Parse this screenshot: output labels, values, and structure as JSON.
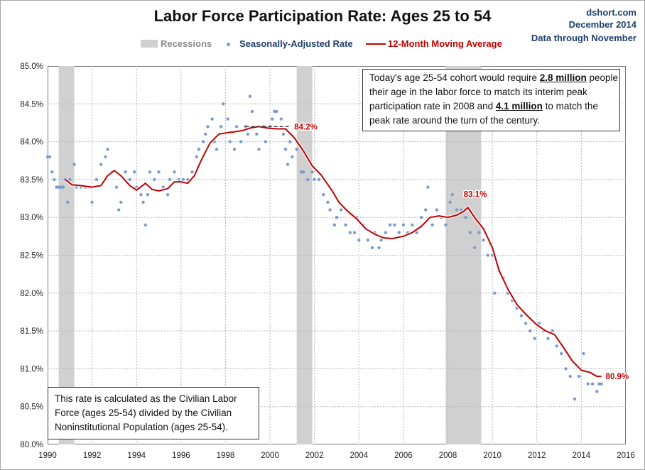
{
  "chart_data": {
    "type": "line",
    "title": "Labor Force Participation Rate: Ages 25 to 54",
    "source": {
      "site": "dshort.com",
      "date": "December 2014",
      "note": "Data through November"
    },
    "legend": {
      "recessions": "Recessions",
      "series_rate": "Seasonally-Adjusted Rate",
      "series_ma": "12-Month Moving Average"
    },
    "colors": {
      "dots": "#7a9ccc",
      "line": "#c00000",
      "recession": "#d0d0d0",
      "label": "#c00000",
      "text_blue": "#1f3f6e"
    },
    "xlim": [
      1990,
      2016
    ],
    "ylim": [
      80.0,
      85.0
    ],
    "x_ticks": [
      "1990",
      "1992",
      "1994",
      "1996",
      "1998",
      "2000",
      "2002",
      "2004",
      "2006",
      "2008",
      "2010",
      "2012",
      "2014",
      "2016"
    ],
    "y_ticks": [
      "80.0%",
      "80.5%",
      "81.0%",
      "81.5%",
      "82.0%",
      "82.5%",
      "83.0%",
      "83.5%",
      "84.0%",
      "84.5%",
      "85.0%"
    ],
    "recessions": [
      [
        1990.5,
        1991.2
      ],
      [
        2001.2,
        2001.9
      ],
      [
        2007.9,
        2009.5
      ]
    ],
    "moving_average": [
      [
        1990.8,
        83.5
      ],
      [
        1991.1,
        83.43
      ],
      [
        1991.5,
        83.42
      ],
      [
        1992.0,
        83.4
      ],
      [
        1992.4,
        83.42
      ],
      [
        1992.7,
        83.55
      ],
      [
        1993.0,
        83.62
      ],
      [
        1993.3,
        83.55
      ],
      [
        1993.7,
        83.42
      ],
      [
        1994.0,
        83.36
      ],
      [
        1994.4,
        83.45
      ],
      [
        1994.7,
        83.37
      ],
      [
        1995.0,
        83.35
      ],
      [
        1995.4,
        83.38
      ],
      [
        1995.7,
        83.47
      ],
      [
        1996.0,
        83.47
      ],
      [
        1996.3,
        83.45
      ],
      [
        1996.6,
        83.55
      ],
      [
        1996.9,
        83.75
      ],
      [
        1997.3,
        83.98
      ],
      [
        1997.7,
        84.1
      ],
      [
        1998.1,
        84.12
      ],
      [
        1998.4,
        84.13
      ],
      [
        1998.8,
        84.15
      ],
      [
        1999.1,
        84.18
      ],
      [
        1999.5,
        84.2
      ],
      [
        1999.9,
        84.18
      ],
      [
        2000.3,
        84.17
      ],
      [
        2000.7,
        84.17
      ],
      [
        2001.1,
        84.05
      ],
      [
        2001.5,
        83.88
      ],
      [
        2001.9,
        83.68
      ],
      [
        2002.3,
        83.56
      ],
      [
        2002.8,
        83.35
      ],
      [
        2003.1,
        83.2
      ],
      [
        2003.5,
        83.08
      ],
      [
        2003.9,
        82.98
      ],
      [
        2004.3,
        82.85
      ],
      [
        2004.7,
        82.78
      ],
      [
        2005.1,
        82.73
      ],
      [
        2005.5,
        82.72
      ],
      [
        2006.0,
        82.75
      ],
      [
        2006.4,
        82.8
      ],
      [
        2006.8,
        82.88
      ],
      [
        2007.2,
        83.0
      ],
      [
        2007.6,
        83.02
      ],
      [
        2008.0,
        83.0
      ],
      [
        2008.4,
        83.03
      ],
      [
        2008.7,
        83.08
      ],
      [
        2008.9,
        83.13
      ],
      [
        2009.2,
        83.0
      ],
      [
        2009.6,
        82.85
      ],
      [
        2010.0,
        82.6
      ],
      [
        2010.3,
        82.3
      ],
      [
        2010.7,
        82.05
      ],
      [
        2011.1,
        81.85
      ],
      [
        2011.5,
        81.72
      ],
      [
        2012.0,
        81.58
      ],
      [
        2012.4,
        81.5
      ],
      [
        2012.8,
        81.45
      ],
      [
        2013.2,
        81.28
      ],
      [
        2013.6,
        81.1
      ],
      [
        2014.0,
        80.98
      ],
      [
        2014.4,
        80.95
      ],
      [
        2014.7,
        80.9
      ],
      [
        2014.9,
        80.9
      ]
    ],
    "seasonally_adjusted": [
      [
        1990.0,
        83.8
      ],
      [
        1990.1,
        83.8
      ],
      [
        1990.2,
        83.6
      ],
      [
        1990.3,
        83.5
      ],
      [
        1990.4,
        83.4
      ],
      [
        1990.5,
        83.4
      ],
      [
        1990.6,
        83.4
      ],
      [
        1990.7,
        83.4
      ],
      [
        1990.8,
        83.5
      ],
      [
        1990.9,
        83.2
      ],
      [
        1991.0,
        83.5
      ],
      [
        1991.2,
        83.7
      ],
      [
        1991.3,
        83.4
      ],
      [
        1991.5,
        83.4
      ],
      [
        1991.7,
        83.4
      ],
      [
        1991.9,
        83.4
      ],
      [
        1992.0,
        83.2
      ],
      [
        1992.2,
        83.5
      ],
      [
        1992.4,
        83.7
      ],
      [
        1992.6,
        83.8
      ],
      [
        1992.7,
        83.9
      ],
      [
        1992.9,
        83.6
      ],
      [
        1993.1,
        83.4
      ],
      [
        1993.2,
        83.1
      ],
      [
        1993.3,
        83.2
      ],
      [
        1993.5,
        83.6
      ],
      [
        1993.7,
        83.5
      ],
      [
        1993.9,
        83.6
      ],
      [
        1994.0,
        83.4
      ],
      [
        1994.2,
        83.3
      ],
      [
        1994.3,
        83.2
      ],
      [
        1994.4,
        82.9
      ],
      [
        1994.5,
        83.3
      ],
      [
        1994.6,
        83.6
      ],
      [
        1994.8,
        83.5
      ],
      [
        1995.0,
        83.6
      ],
      [
        1995.2,
        83.4
      ],
      [
        1995.4,
        83.3
      ],
      [
        1995.5,
        83.5
      ],
      [
        1995.7,
        83.6
      ],
      [
        1995.9,
        83.5
      ],
      [
        1996.1,
        83.5
      ],
      [
        1996.3,
        83.5
      ],
      [
        1996.5,
        83.6
      ],
      [
        1996.7,
        83.8
      ],
      [
        1996.8,
        83.9
      ],
      [
        1997.0,
        84.0
      ],
      [
        1997.1,
        84.1
      ],
      [
        1997.2,
        84.2
      ],
      [
        1997.4,
        84.3
      ],
      [
        1997.5,
        84.0
      ],
      [
        1997.6,
        83.9
      ],
      [
        1997.8,
        84.2
      ],
      [
        1997.9,
        84.5
      ],
      [
        1998.1,
        84.3
      ],
      [
        1998.2,
        84.0
      ],
      [
        1998.4,
        83.9
      ],
      [
        1998.5,
        84.2
      ],
      [
        1998.7,
        84.0
      ],
      [
        1998.9,
        84.2
      ],
      [
        1999.0,
        84.1
      ],
      [
        1999.1,
        84.6
      ],
      [
        1999.2,
        84.4
      ],
      [
        1999.4,
        84.1
      ],
      [
        1999.5,
        83.9
      ],
      [
        1999.7,
        84.2
      ],
      [
        1999.8,
        84.0
      ],
      [
        2000.0,
        84.2
      ],
      [
        2000.1,
        84.3
      ],
      [
        2000.2,
        84.4
      ],
      [
        2000.3,
        84.4
      ],
      [
        2000.5,
        84.3
      ],
      [
        2000.6,
        84.1
      ],
      [
        2000.7,
        83.9
      ],
      [
        2000.8,
        83.7
      ],
      [
        2000.9,
        84.0
      ],
      [
        2001.0,
        83.8
      ],
      [
        2001.2,
        83.9
      ],
      [
        2001.4,
        83.6
      ],
      [
        2001.5,
        83.6
      ],
      [
        2001.7,
        83.5
      ],
      [
        2001.9,
        83.6
      ],
      [
        2002.0,
        83.5
      ],
      [
        2002.2,
        83.5
      ],
      [
        2002.4,
        83.3
      ],
      [
        2002.6,
        83.2
      ],
      [
        2002.7,
        83.1
      ],
      [
        2002.9,
        82.9
      ],
      [
        2003.0,
        83.0
      ],
      [
        2003.2,
        83.1
      ],
      [
        2003.4,
        82.9
      ],
      [
        2003.6,
        82.8
      ],
      [
        2003.8,
        82.8
      ],
      [
        2003.9,
        83.0
      ],
      [
        2004.0,
        82.7
      ],
      [
        2004.2,
        82.9
      ],
      [
        2004.4,
        82.7
      ],
      [
        2004.6,
        82.6
      ],
      [
        2004.7,
        82.8
      ],
      [
        2004.9,
        82.6
      ],
      [
        2005.0,
        82.7
      ],
      [
        2005.2,
        82.8
      ],
      [
        2005.4,
        82.9
      ],
      [
        2005.6,
        82.9
      ],
      [
        2005.8,
        82.8
      ],
      [
        2006.0,
        82.9
      ],
      [
        2006.2,
        82.8
      ],
      [
        2006.4,
        82.9
      ],
      [
        2006.6,
        82.8
      ],
      [
        2006.8,
        83.0
      ],
      [
        2007.0,
        83.1
      ],
      [
        2007.1,
        83.4
      ],
      [
        2007.3,
        82.9
      ],
      [
        2007.5,
        83.1
      ],
      [
        2007.7,
        83.0
      ],
      [
        2007.9,
        82.9
      ],
      [
        2008.1,
        83.2
      ],
      [
        2008.2,
        83.3
      ],
      [
        2008.4,
        83.1
      ],
      [
        2008.6,
        83.1
      ],
      [
        2008.8,
        83.0
      ],
      [
        2009.0,
        82.8
      ],
      [
        2009.2,
        82.6
      ],
      [
        2009.4,
        82.8
      ],
      [
        2009.6,
        82.7
      ],
      [
        2009.8,
        82.5
      ],
      [
        2010.0,
        82.5
      ],
      [
        2010.1,
        82.0
      ],
      [
        2010.3,
        82.3
      ],
      [
        2010.5,
        82.2
      ],
      [
        2010.7,
        82.0
      ],
      [
        2010.9,
        81.9
      ],
      [
        2011.1,
        81.8
      ],
      [
        2011.3,
        81.7
      ],
      [
        2011.5,
        81.6
      ],
      [
        2011.7,
        81.5
      ],
      [
        2011.9,
        81.4
      ],
      [
        2012.1,
        81.6
      ],
      [
        2012.3,
        81.5
      ],
      [
        2012.5,
        81.4
      ],
      [
        2012.7,
        81.5
      ],
      [
        2012.9,
        81.3
      ],
      [
        2013.1,
        81.2
      ],
      [
        2013.3,
        81.0
      ],
      [
        2013.5,
        80.9
      ],
      [
        2013.7,
        80.6
      ],
      [
        2013.9,
        80.9
      ],
      [
        2014.1,
        81.2
      ],
      [
        2014.3,
        80.8
      ],
      [
        2014.5,
        80.8
      ],
      [
        2014.7,
        80.7
      ],
      [
        2014.8,
        80.8
      ],
      [
        2014.9,
        80.8
      ]
    ],
    "reference_line": {
      "value": 84.2,
      "from": 1998.9,
      "to": 2000.9
    },
    "labels": [
      {
        "text": "84.2%",
        "x": 2000.9,
        "y": 84.2
      },
      {
        "text": "83.1%",
        "x": 2008.9,
        "y": 83.13
      },
      {
        "text": "80.9%",
        "x": 2014.9,
        "y": 80.9
      }
    ],
    "annotations": {
      "cohort": {
        "t1": "Today's age 25-54 cohort would require ",
        "b1": "2.8 million",
        "t2": " people their age in the labor force to match its interim peak participation rate in 2008 and ",
        "b2": "4.1 million",
        "t3": " to match the peak rate around the turn of the century."
      },
      "definition": "This rate is calculated as the Civilian Labor Force (ages 25-54) divided by the Civilian Noninstitutional Population (ages 25-54)."
    }
  }
}
